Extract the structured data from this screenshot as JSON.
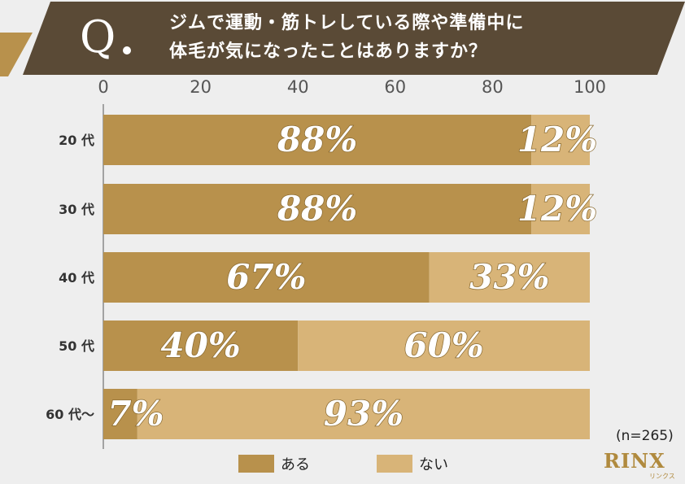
{
  "header": {
    "q_mark": "Q",
    "question_line1": "ジムで運動・筋トレしている際や準備中に",
    "question_line2": "体毛が気になったことはありますか？"
  },
  "chart_data": {
    "type": "bar",
    "orientation": "horizontal",
    "stacked": true,
    "categories": [
      "20 代",
      "30 代",
      "40 代",
      "50 代",
      "60 代〜"
    ],
    "series": [
      {
        "name": "ある",
        "values": [
          88,
          88,
          67,
          40,
          7
        ],
        "labels": [
          "88%",
          "88%",
          "67%",
          "40%",
          "7%"
        ],
        "color": "#b8914c"
      },
      {
        "name": "ない",
        "values": [
          12,
          12,
          33,
          60,
          93
        ],
        "labels": [
          "12%",
          "12%",
          "33%",
          "60%",
          "93%"
        ],
        "color": "#d8b478"
      }
    ],
    "xlim": [
      0,
      100
    ],
    "xticks": [
      "0",
      "20",
      "40",
      "60",
      "80",
      "100"
    ],
    "tick_position": "top",
    "legend_position": "bottom"
  },
  "sample_size": "(n=265)",
  "colors": {
    "banner": "#5a4a36",
    "banner_stripe": "#b8914c",
    "yes": "#b8914c",
    "no": "#d8b478",
    "axis": "#888888"
  },
  "logo": {
    "text": "RINX",
    "sub": "リンクス"
  }
}
